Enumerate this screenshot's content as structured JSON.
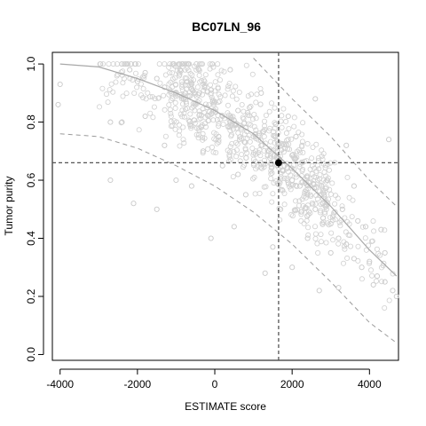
{
  "chart_data": {
    "type": "scatter",
    "title": "BC07LN_96",
    "xlabel": "ESTIMATE score",
    "ylabel": "Tumor purity",
    "xlim": [
      -4200,
      4750
    ],
    "ylim": [
      -0.02,
      1.04
    ],
    "x_ticks": [
      -4000,
      -2000,
      0,
      2000,
      4000
    ],
    "x_tick_labels": [
      "-4000",
      "-2000",
      "0",
      "2000",
      "4000"
    ],
    "y_ticks": [
      0.0,
      0.2,
      0.4,
      0.6,
      0.8,
      1.0
    ],
    "y_tick_labels": [
      "0.0",
      "0.2",
      "0.4",
      "0.6",
      "0.8",
      "1.0"
    ],
    "grid": false,
    "legend": "none",
    "highlight_point": {
      "x": 1650,
      "y": 0.66
    },
    "reference_lines": {
      "vertical_x": 1650,
      "horizontal_y": 0.66
    },
    "fit_curve": [
      [
        -4000,
        1.0
      ],
      [
        -3000,
        0.99
      ],
      [
        -2000,
        0.95
      ],
      [
        -1000,
        0.9
      ],
      [
        0,
        0.84
      ],
      [
        1000,
        0.76
      ],
      [
        2000,
        0.64
      ],
      [
        3000,
        0.51
      ],
      [
        4000,
        0.36
      ],
      [
        4700,
        0.27
      ]
    ],
    "upper_band": [
      [
        1000,
        1.02
      ],
      [
        2000,
        0.88
      ],
      [
        3000,
        0.75
      ],
      [
        4000,
        0.6
      ],
      [
        4700,
        0.51
      ]
    ],
    "lower_band": [
      [
        -4000,
        0.76
      ],
      [
        -3000,
        0.75
      ],
      [
        -2000,
        0.71
      ],
      [
        -1000,
        0.65
      ],
      [
        0,
        0.58
      ],
      [
        1000,
        0.49
      ],
      [
        2000,
        0.38
      ],
      [
        3000,
        0.25
      ],
      [
        4000,
        0.11
      ],
      [
        4700,
        0.04
      ]
    ],
    "points_summary": {
      "count": 900,
      "x_range": [
        -4000,
        4750
      ],
      "description_from_density": "dense cloud around x 0 to 2500, y 0.5 to 0.95"
    },
    "points": [
      [
        -4000,
        0.93
      ],
      [
        -4050,
        0.86
      ],
      [
        -2700,
        0.6
      ],
      [
        -2200,
        0.98
      ],
      [
        -2000,
        0.94
      ],
      [
        -1800,
        0.97
      ],
      [
        -1500,
        0.95
      ],
      [
        -1300,
        0.92
      ],
      [
        -1000,
        0.9
      ],
      [
        -800,
        0.88
      ],
      [
        -600,
        0.93
      ],
      [
        -400,
        0.9
      ],
      [
        -200,
        0.85
      ],
      [
        0,
        0.87
      ],
      [
        200,
        0.82
      ],
      [
        400,
        0.8
      ],
      [
        600,
        0.84
      ],
      [
        800,
        0.78
      ],
      [
        1000,
        0.75
      ],
      [
        1200,
        0.72
      ],
      [
        1400,
        0.7
      ],
      [
        1600,
        0.68
      ],
      [
        1800,
        0.65
      ],
      [
        2000,
        0.6
      ],
      [
        2200,
        0.58
      ],
      [
        2400,
        0.55
      ],
      [
        2600,
        0.5
      ],
      [
        2800,
        0.47
      ],
      [
        3000,
        0.45
      ],
      [
        3200,
        0.4
      ],
      [
        3400,
        0.38
      ],
      [
        3600,
        0.33
      ],
      [
        3800,
        0.3
      ],
      [
        4000,
        0.32
      ],
      [
        4200,
        0.27
      ],
      [
        4400,
        0.25
      ],
      [
        4600,
        0.22
      ],
      [
        4700,
        0.2
      ],
      [
        4500,
        0.74
      ],
      [
        3200,
        0.23
      ],
      [
        2700,
        0.22
      ],
      [
        1300,
        0.28
      ],
      [
        -100,
        0.4
      ],
      [
        -2100,
        0.52
      ],
      [
        -1500,
        0.5
      ],
      [
        -600,
        0.58
      ],
      [
        600,
        0.62
      ],
      [
        2600,
        0.88
      ],
      [
        3400,
        0.72
      ],
      [
        3600,
        0.58
      ],
      [
        2100,
        0.75
      ],
      [
        1200,
        0.9
      ],
      [
        400,
        0.98
      ],
      [
        -900,
        0.98
      ],
      [
        -2400,
        0.8
      ],
      [
        -2700,
        0.8
      ],
      [
        -1800,
        0.82
      ],
      [
        -300,
        0.7
      ],
      [
        200,
        0.65
      ],
      [
        800,
        0.55
      ],
      [
        1700,
        0.5
      ],
      [
        2400,
        0.4
      ],
      [
        3000,
        0.35
      ],
      [
        3900,
        0.44
      ],
      [
        4300,
        0.43
      ],
      [
        1500,
        0.37
      ],
      [
        2000,
        0.3
      ],
      [
        500,
        0.44
      ],
      [
        -1000,
        0.6
      ],
      [
        -1300,
        0.72
      ],
      [
        100,
        0.75
      ],
      [
        900,
        0.85
      ],
      [
        1900,
        0.82
      ],
      [
        2900,
        0.6
      ],
      [
        3300,
        0.5
      ],
      [
        3700,
        0.46
      ],
      [
        4100,
        0.24
      ],
      [
        4400,
        0.35
      ]
    ]
  }
}
